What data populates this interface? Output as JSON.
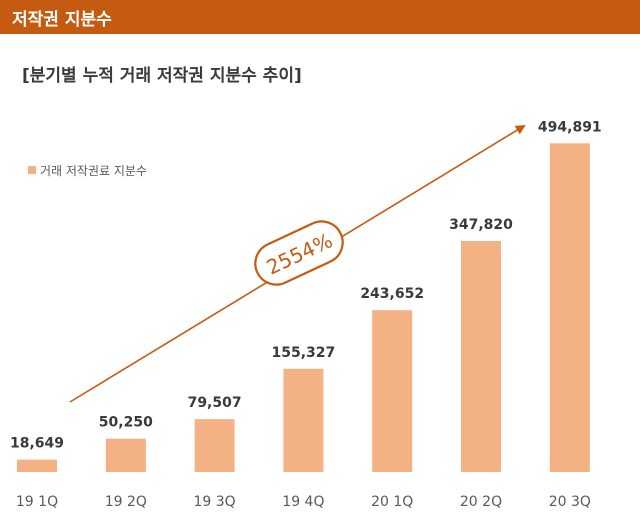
{
  "header": {
    "title": "저작권 지분수"
  },
  "colors": {
    "header_bg": "#c55a11",
    "bar": "#f4b183",
    "arrow": "#c55a11",
    "label": "#3a3a3a",
    "tick": "#595959"
  },
  "chart_data": {
    "type": "bar",
    "title": "[분기별 누적 거래 저작권 지분수 추이]",
    "categories": [
      "19 1Q",
      "19 2Q",
      "19 3Q",
      "19 4Q",
      "20 1Q",
      "20 2Q",
      "20 3Q"
    ],
    "series": [
      {
        "name": "거래 저작권료 지분수",
        "values": [
          18649,
          50250,
          79507,
          155327,
          243652,
          347820,
          494891
        ]
      }
    ],
    "data_labels": [
      "18,649",
      "50,250",
      "79,507",
      "155,327",
      "243,652",
      "347,820",
      "494,891"
    ],
    "annotation": "2554%",
    "legend_position": "top-left",
    "ylim": [
      0,
      530000
    ],
    "grid": false,
    "xlabel": "",
    "ylabel": ""
  }
}
